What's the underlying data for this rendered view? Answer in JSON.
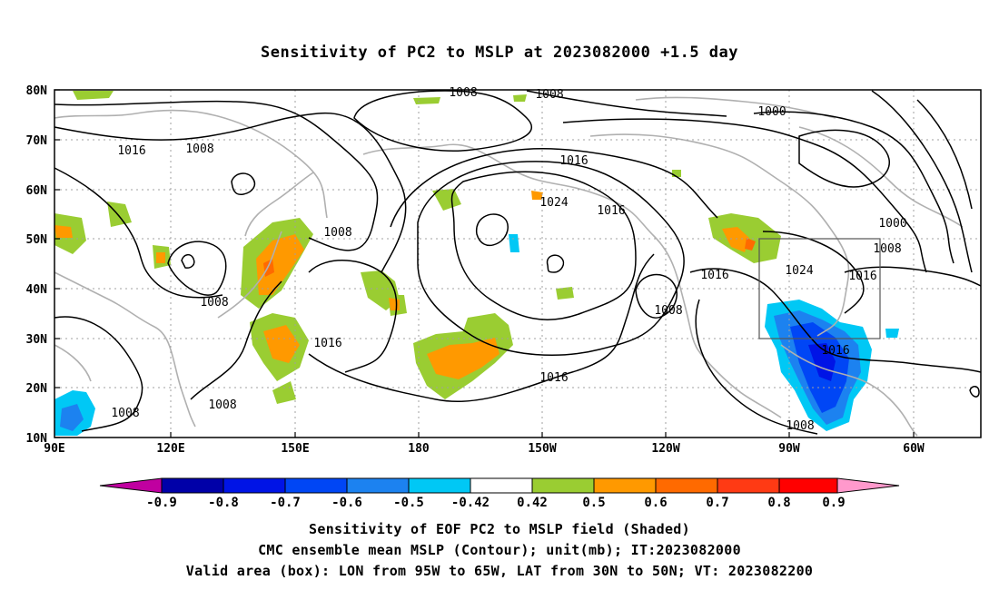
{
  "title": "Sensitivity of PC2 to MSLP at 2023082000 +1.5 day",
  "lat_labels": [
    "80N",
    "70N",
    "60N",
    "50N",
    "40N",
    "30N",
    "20N",
    "10N"
  ],
  "lon_labels": [
    "90E",
    "120E",
    "150E",
    "180",
    "150W",
    "120W",
    "90W",
    "60W"
  ],
  "contour_labels": [
    {
      "id": "c1",
      "text": "1008"
    },
    {
      "id": "c2",
      "text": "1008"
    },
    {
      "id": "c3",
      "text": "1000"
    },
    {
      "id": "c4",
      "text": "1016"
    },
    {
      "id": "c5",
      "text": "1008"
    },
    {
      "id": "c6",
      "text": "1016"
    },
    {
      "id": "c7",
      "text": "1024"
    },
    {
      "id": "c8",
      "text": "1016"
    },
    {
      "id": "c9",
      "text": "1008"
    },
    {
      "id": "c10",
      "text": "1000"
    },
    {
      "id": "c11",
      "text": "1008"
    },
    {
      "id": "c12",
      "text": "1024"
    },
    {
      "id": "c13",
      "text": "1016"
    },
    {
      "id": "c14",
      "text": "1016"
    },
    {
      "id": "c15",
      "text": "1008"
    },
    {
      "id": "c16",
      "text": "1008"
    },
    {
      "id": "c17",
      "text": "1016"
    },
    {
      "id": "c18",
      "text": "1016"
    },
    {
      "id": "c19",
      "text": "1016"
    },
    {
      "id": "c20",
      "text": "1008"
    },
    {
      "id": "c21",
      "text": "1008"
    },
    {
      "id": "c22",
      "text": "1008"
    }
  ],
  "colorbar": {
    "labels": [
      "-0.9",
      "-0.8",
      "-0.7",
      "-0.6",
      "-0.5",
      "-0.42",
      "0.42",
      "0.5",
      "0.6",
      "0.7",
      "0.8",
      "0.9"
    ],
    "colors": [
      "#c000a0",
      "#0000a8",
      "#0014e6",
      "#0046f5",
      "#1c82f0",
      "#00c8f5",
      "#ffffff",
      "#9acd32",
      "#ff9900",
      "#ff6a00",
      "#ff3a14",
      "#ff0000",
      "#ff99cc"
    ]
  },
  "valid_box": {
    "lon_min": -95,
    "lon_max": -65,
    "lat_min": 30,
    "lat_max": 50
  },
  "captions": [
    "Sensitivity of EOF PC2 to MSLP field (Shaded)",
    "CMC ensemble mean MSLP (Contour); unit(mb); IT:2023082000",
    "Valid area (box): LON from 95W to 65W, LAT from 30N to 50N; VT: 2023082200"
  ]
}
